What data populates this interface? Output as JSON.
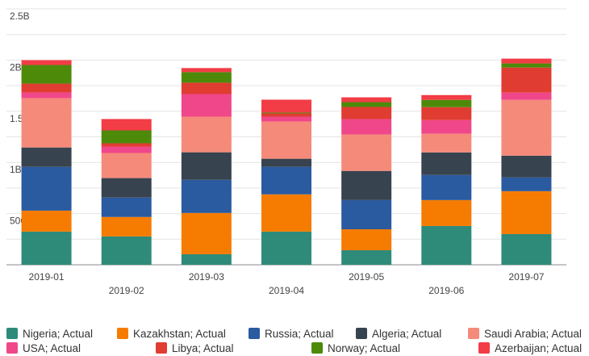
{
  "chart_data": {
    "type": "stacked-bar",
    "categories": [
      "2019-01",
      "2019-02",
      "2019-03",
      "2019-04",
      "2019-05",
      "2019-06",
      "2019-07"
    ],
    "series": [
      {
        "name": "Nigeria; Actual",
        "color": "#2e8b7a",
        "values": [
          324000000,
          277000000,
          103000000,
          324000000,
          142000000,
          379000000,
          300000000
        ]
      },
      {
        "name": "Kazakhstan; Actual",
        "color": "#f57c00",
        "values": [
          205000000,
          190000000,
          403000000,
          364000000,
          205000000,
          253000000,
          419000000
        ]
      },
      {
        "name": "Russia; Actual",
        "color": "#2a5aa0",
        "values": [
          427000000,
          190000000,
          324000000,
          269000000,
          285000000,
          245000000,
          134000000
        ]
      },
      {
        "name": "Algeria; Actual",
        "color": "#37434f",
        "values": [
          190000000,
          190000000,
          269000000,
          79000000,
          285000000,
          221000000,
          213000000
        ]
      },
      {
        "name": "Saudi Arabia; Actual",
        "color": "#f58a7a",
        "values": [
          482000000,
          245000000,
          348000000,
          364000000,
          356000000,
          182000000,
          545000000
        ]
      },
      {
        "name": "USA; Actual",
        "color": "#f0478a",
        "values": [
          55000000,
          63000000,
          221000000,
          47000000,
          150000000,
          134000000,
          71000000
        ]
      },
      {
        "name": "Libya; Actual",
        "color": "#e03c31",
        "values": [
          87000000,
          32000000,
          111000000,
          32000000,
          119000000,
          126000000,
          245000000
        ]
      },
      {
        "name": "Norway; Actual",
        "color": "#4d8a0a",
        "values": [
          182000000,
          126000000,
          103000000,
          8000000,
          47000000,
          71000000,
          40000000
        ]
      },
      {
        "name": "Azerbaijan; Actual",
        "color": "#f23c46",
        "values": [
          47000000,
          111000000,
          40000000,
          126000000,
          47000000,
          47000000,
          47000000
        ]
      }
    ],
    "ylim": [
      0,
      2500000000
    ],
    "yticks": [
      {
        "value": 500000000,
        "label": "500M"
      },
      {
        "value": 1000000000,
        "label": "1B"
      },
      {
        "value": 1500000000,
        "label": "1.5B"
      },
      {
        "value": 2000000000,
        "label": "2B"
      },
      {
        "value": 2500000000,
        "label": "2.5B"
      }
    ],
    "minor_grid": [
      250000000,
      750000000,
      1250000000,
      1750000000,
      2250000000
    ],
    "grid": true,
    "legend": "bottom"
  }
}
